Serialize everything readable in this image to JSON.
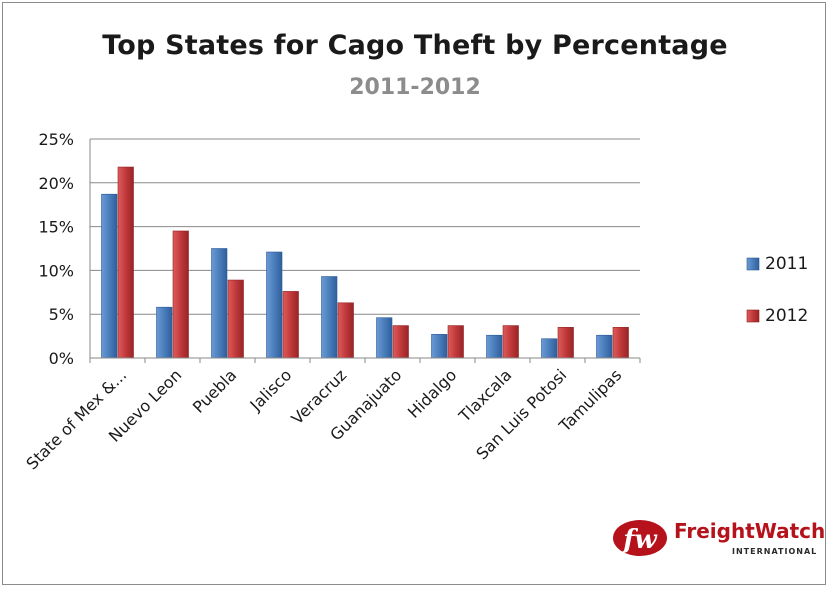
{
  "chart_data": {
    "type": "bar",
    "title": "Top States for Cago Theft by Percentage",
    "subtitle": "2011-2012",
    "xlabel": "",
    "ylabel": "",
    "ylim": [
      0,
      25
    ],
    "yticks": [
      "0%",
      "5%",
      "10%",
      "15%",
      "20%",
      "25%"
    ],
    "grid": true,
    "legend_position": "right",
    "categories": [
      "State of Mex &...",
      "Nuevo Leon",
      "Puebla",
      "Jalisco",
      "Veracruz",
      "Guanajuato",
      "Hidalgo",
      "Tlaxcala",
      "San Luis Potosi",
      "Tamulipas"
    ],
    "series": [
      {
        "name": "2011",
        "color": "#4a7ebb",
        "values": [
          18.7,
          5.8,
          12.5,
          12.1,
          9.3,
          4.6,
          2.7,
          2.6,
          2.2,
          2.6
        ]
      },
      {
        "name": "2012",
        "color": "#c0393b",
        "values": [
          21.8,
          14.5,
          8.9,
          7.6,
          6.3,
          3.7,
          3.7,
          3.7,
          3.5,
          3.5
        ]
      }
    ]
  },
  "logo": {
    "mark": "fw",
    "name": "FreightWatch",
    "subtitle": "INTERNATIONAL"
  }
}
